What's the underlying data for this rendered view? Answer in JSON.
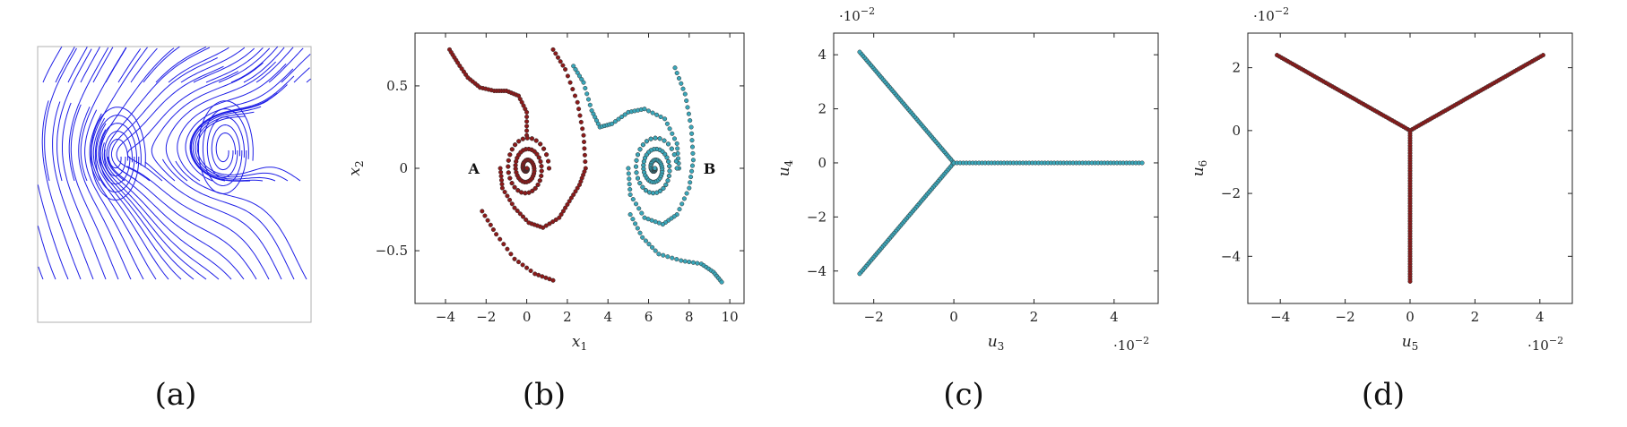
{
  "captions": [
    "(a)",
    "(b)",
    "(c)",
    "(d)"
  ],
  "colors": {
    "streamline": "#1f1fe6",
    "red": "#8b1a1a",
    "teal": "#3aa6b9"
  },
  "chart_data": [
    {
      "panel": "a",
      "type": "streamplot",
      "title": "",
      "xlabel": "",
      "ylabel": ""
    },
    {
      "panel": "b",
      "type": "scatter",
      "xlabel": "x1",
      "xlabel_sub": "1",
      "xlabel_base": "x",
      "ylabel_base": "x",
      "ylabel_sub": "2",
      "xlim": [
        -5.5,
        10.7
      ],
      "ylim": [
        -0.82,
        0.82
      ],
      "xticks": [
        -4,
        -2,
        0,
        2,
        4,
        6,
        8,
        10
      ],
      "xtick_labels": [
        "−4",
        "−2",
        "0",
        "2",
        "4",
        "6",
        "8",
        "10"
      ],
      "yticks": [
        -0.5,
        0,
        0.5
      ],
      "ytick_labels": [
        "−0.5",
        "0",
        "0.5"
      ],
      "annotations": [
        {
          "text": "A",
          "x": -2.6,
          "y": 0.0
        },
        {
          "text": "B",
          "x": 9.0,
          "y": 0.0
        }
      ],
      "series": [
        {
          "color": "red",
          "curves": [
            {
              "points": [
                [
                  -3.8,
                  0.72
                ],
                [
                  -3.4,
                  0.64
                ],
                [
                  -2.9,
                  0.55
                ],
                [
                  -2.3,
                  0.49
                ],
                [
                  -1.6,
                  0.47
                ],
                [
                  -1.0,
                  0.47
                ],
                [
                  -0.4,
                  0.44
                ],
                [
                  0.0,
                  0.34
                ],
                [
                  0.0,
                  0.2
                ]
              ],
              "spiral_to": [
                0.0,
                0.0
              ]
            },
            {
              "points": [
                [
                  1.3,
                  0.72
                ],
                [
                  1.9,
                  0.6
                ],
                [
                  2.5,
                  0.4
                ],
                [
                  2.8,
                  0.2
                ],
                [
                  2.9,
                  0.0
                ],
                [
                  2.6,
                  -0.1
                ],
                [
                  2.1,
                  -0.2
                ],
                [
                  1.6,
                  -0.3
                ],
                [
                  0.8,
                  -0.36
                ],
                [
                  0.1,
                  -0.33
                ],
                [
                  -0.6,
                  -0.24
                ],
                [
                  -1.2,
                  -0.12
                ],
                [
                  -1.3,
                  0.0
                ]
              ],
              "spiral_to": [
                0.0,
                0.0
              ]
            },
            {
              "points": [
                [
                  -2.2,
                  -0.26
                ],
                [
                  -1.5,
                  -0.4
                ],
                [
                  -0.6,
                  -0.55
                ],
                [
                  0.4,
                  -0.64
                ],
                [
                  1.3,
                  -0.68
                ]
              ],
              "spiral_to": null
            }
          ]
        },
        {
          "color": "teal",
          "curves": [
            {
              "points": [
                [
                  2.3,
                  0.62
                ],
                [
                  2.8,
                  0.52
                ],
                [
                  3.2,
                  0.35
                ],
                [
                  3.6,
                  0.25
                ],
                [
                  4.2,
                  0.27
                ],
                [
                  5.0,
                  0.34
                ],
                [
                  5.8,
                  0.36
                ],
                [
                  6.8,
                  0.3
                ],
                [
                  7.4,
                  0.15
                ],
                [
                  7.5,
                  0.0
                ]
              ],
              "spiral_to": [
                6.3,
                0.0
              ]
            },
            {
              "points": [
                [
                  7.3,
                  0.61
                ],
                [
                  7.8,
                  0.45
                ],
                [
                  8.1,
                  0.25
                ],
                [
                  8.2,
                  0.05
                ],
                [
                  8.0,
                  -0.12
                ],
                [
                  7.4,
                  -0.28
                ],
                [
                  6.7,
                  -0.34
                ],
                [
                  5.8,
                  -0.3
                ],
                [
                  5.1,
                  -0.16
                ],
                [
                  5.0,
                  0.0
                ]
              ],
              "spiral_to": [
                6.3,
                0.0
              ]
            },
            {
              "points": [
                [
                  5.1,
                  -0.28
                ],
                [
                  5.7,
                  -0.42
                ],
                [
                  6.5,
                  -0.52
                ],
                [
                  7.6,
                  -0.56
                ],
                [
                  8.6,
                  -0.58
                ],
                [
                  9.2,
                  -0.63
                ],
                [
                  9.6,
                  -0.69
                ]
              ],
              "spiral_to": null
            }
          ]
        }
      ]
    },
    {
      "panel": "c",
      "type": "scatter",
      "xlabel_base": "u",
      "xlabel_sub": "3",
      "ylabel_base": "u",
      "ylabel_sub": "4",
      "xlim": [
        -3.0,
        5.1
      ],
      "ylim": [
        -5.2,
        4.8
      ],
      "xticks": [
        -2,
        0,
        2,
        4
      ],
      "xtick_labels": [
        "−2",
        "0",
        "2",
        "4"
      ],
      "yticks": [
        -4,
        -2,
        0,
        2,
        4
      ],
      "ytick_labels": [
        "−4",
        "−2",
        "0",
        "2",
        "4"
      ],
      "x_multiplier": "·10",
      "x_multiplier_exp": "−2",
      "y_multiplier": "·10",
      "y_multiplier_exp": "−2",
      "series": [
        {
          "color": "teal",
          "arms": [
            [
              -2.35,
              4.1
            ],
            [
              -2.35,
              -4.1
            ],
            [
              4.7,
              0.0
            ]
          ],
          "center": [
            0.0,
            0.0
          ]
        }
      ]
    },
    {
      "panel": "d",
      "type": "scatter",
      "xlabel_base": "u",
      "xlabel_sub": "5",
      "ylabel_base": "u",
      "ylabel_sub": "6",
      "xlim": [
        -5.0,
        5.0
      ],
      "ylim": [
        -5.5,
        3.1
      ],
      "xticks": [
        -4,
        -2,
        0,
        2,
        4
      ],
      "xtick_labels": [
        "−4",
        "−2",
        "0",
        "2",
        "4"
      ],
      "yticks": [
        -4,
        -2,
        0,
        2
      ],
      "ytick_labels": [
        "−4",
        "−2",
        "0",
        "2"
      ],
      "x_multiplier": "·10",
      "x_multiplier_exp": "−2",
      "y_multiplier": "·10",
      "y_multiplier_exp": "−2",
      "series": [
        {
          "color": "red",
          "arms": [
            [
              -4.1,
              2.4
            ],
            [
              4.1,
              2.4
            ],
            [
              0.0,
              -4.8
            ]
          ],
          "center": [
            0.0,
            0.0
          ]
        }
      ]
    }
  ]
}
